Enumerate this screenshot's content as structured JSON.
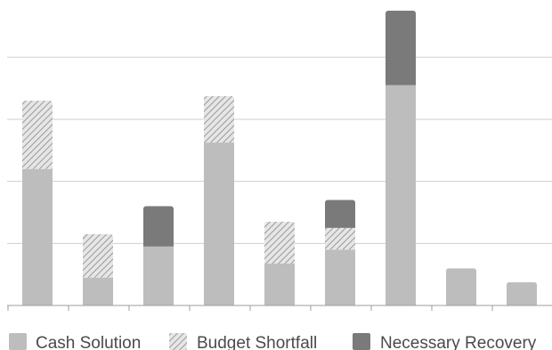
{
  "chart_data": {
    "type": "bar",
    "stacked": true,
    "categories": [
      "",
      "",
      "",
      "",
      "",
      "",
      "",
      "",
      ""
    ],
    "series": [
      {
        "name": "Cash Solution",
        "values": [
          4.4,
          0.9,
          1.9,
          5.25,
          1.35,
          1.8,
          7.1,
          1.2,
          0.75
        ],
        "color": "#bdbdbd",
        "pattern": "solid"
      },
      {
        "name": "Budget Shortfall",
        "values": [
          2.2,
          1.4,
          0,
          1.5,
          1.35,
          0.7,
          0,
          0,
          0
        ],
        "color": "#cfcfcf",
        "pattern": "diagonal-hatch"
      },
      {
        "name": "Necessary Recovery",
        "values": [
          0,
          0,
          1.3,
          0,
          0,
          0.9,
          2.4,
          0,
          0
        ],
        "color": "#7a7a7a",
        "pattern": "solid"
      }
    ],
    "ylim": [
      0,
      9.5
    ],
    "yticks": [
      0,
      2,
      4,
      6,
      8
    ],
    "grid": true,
    "tick_labels_shown": false,
    "legend_position": "bottom",
    "title": "",
    "xlabel": "",
    "ylabel": ""
  }
}
